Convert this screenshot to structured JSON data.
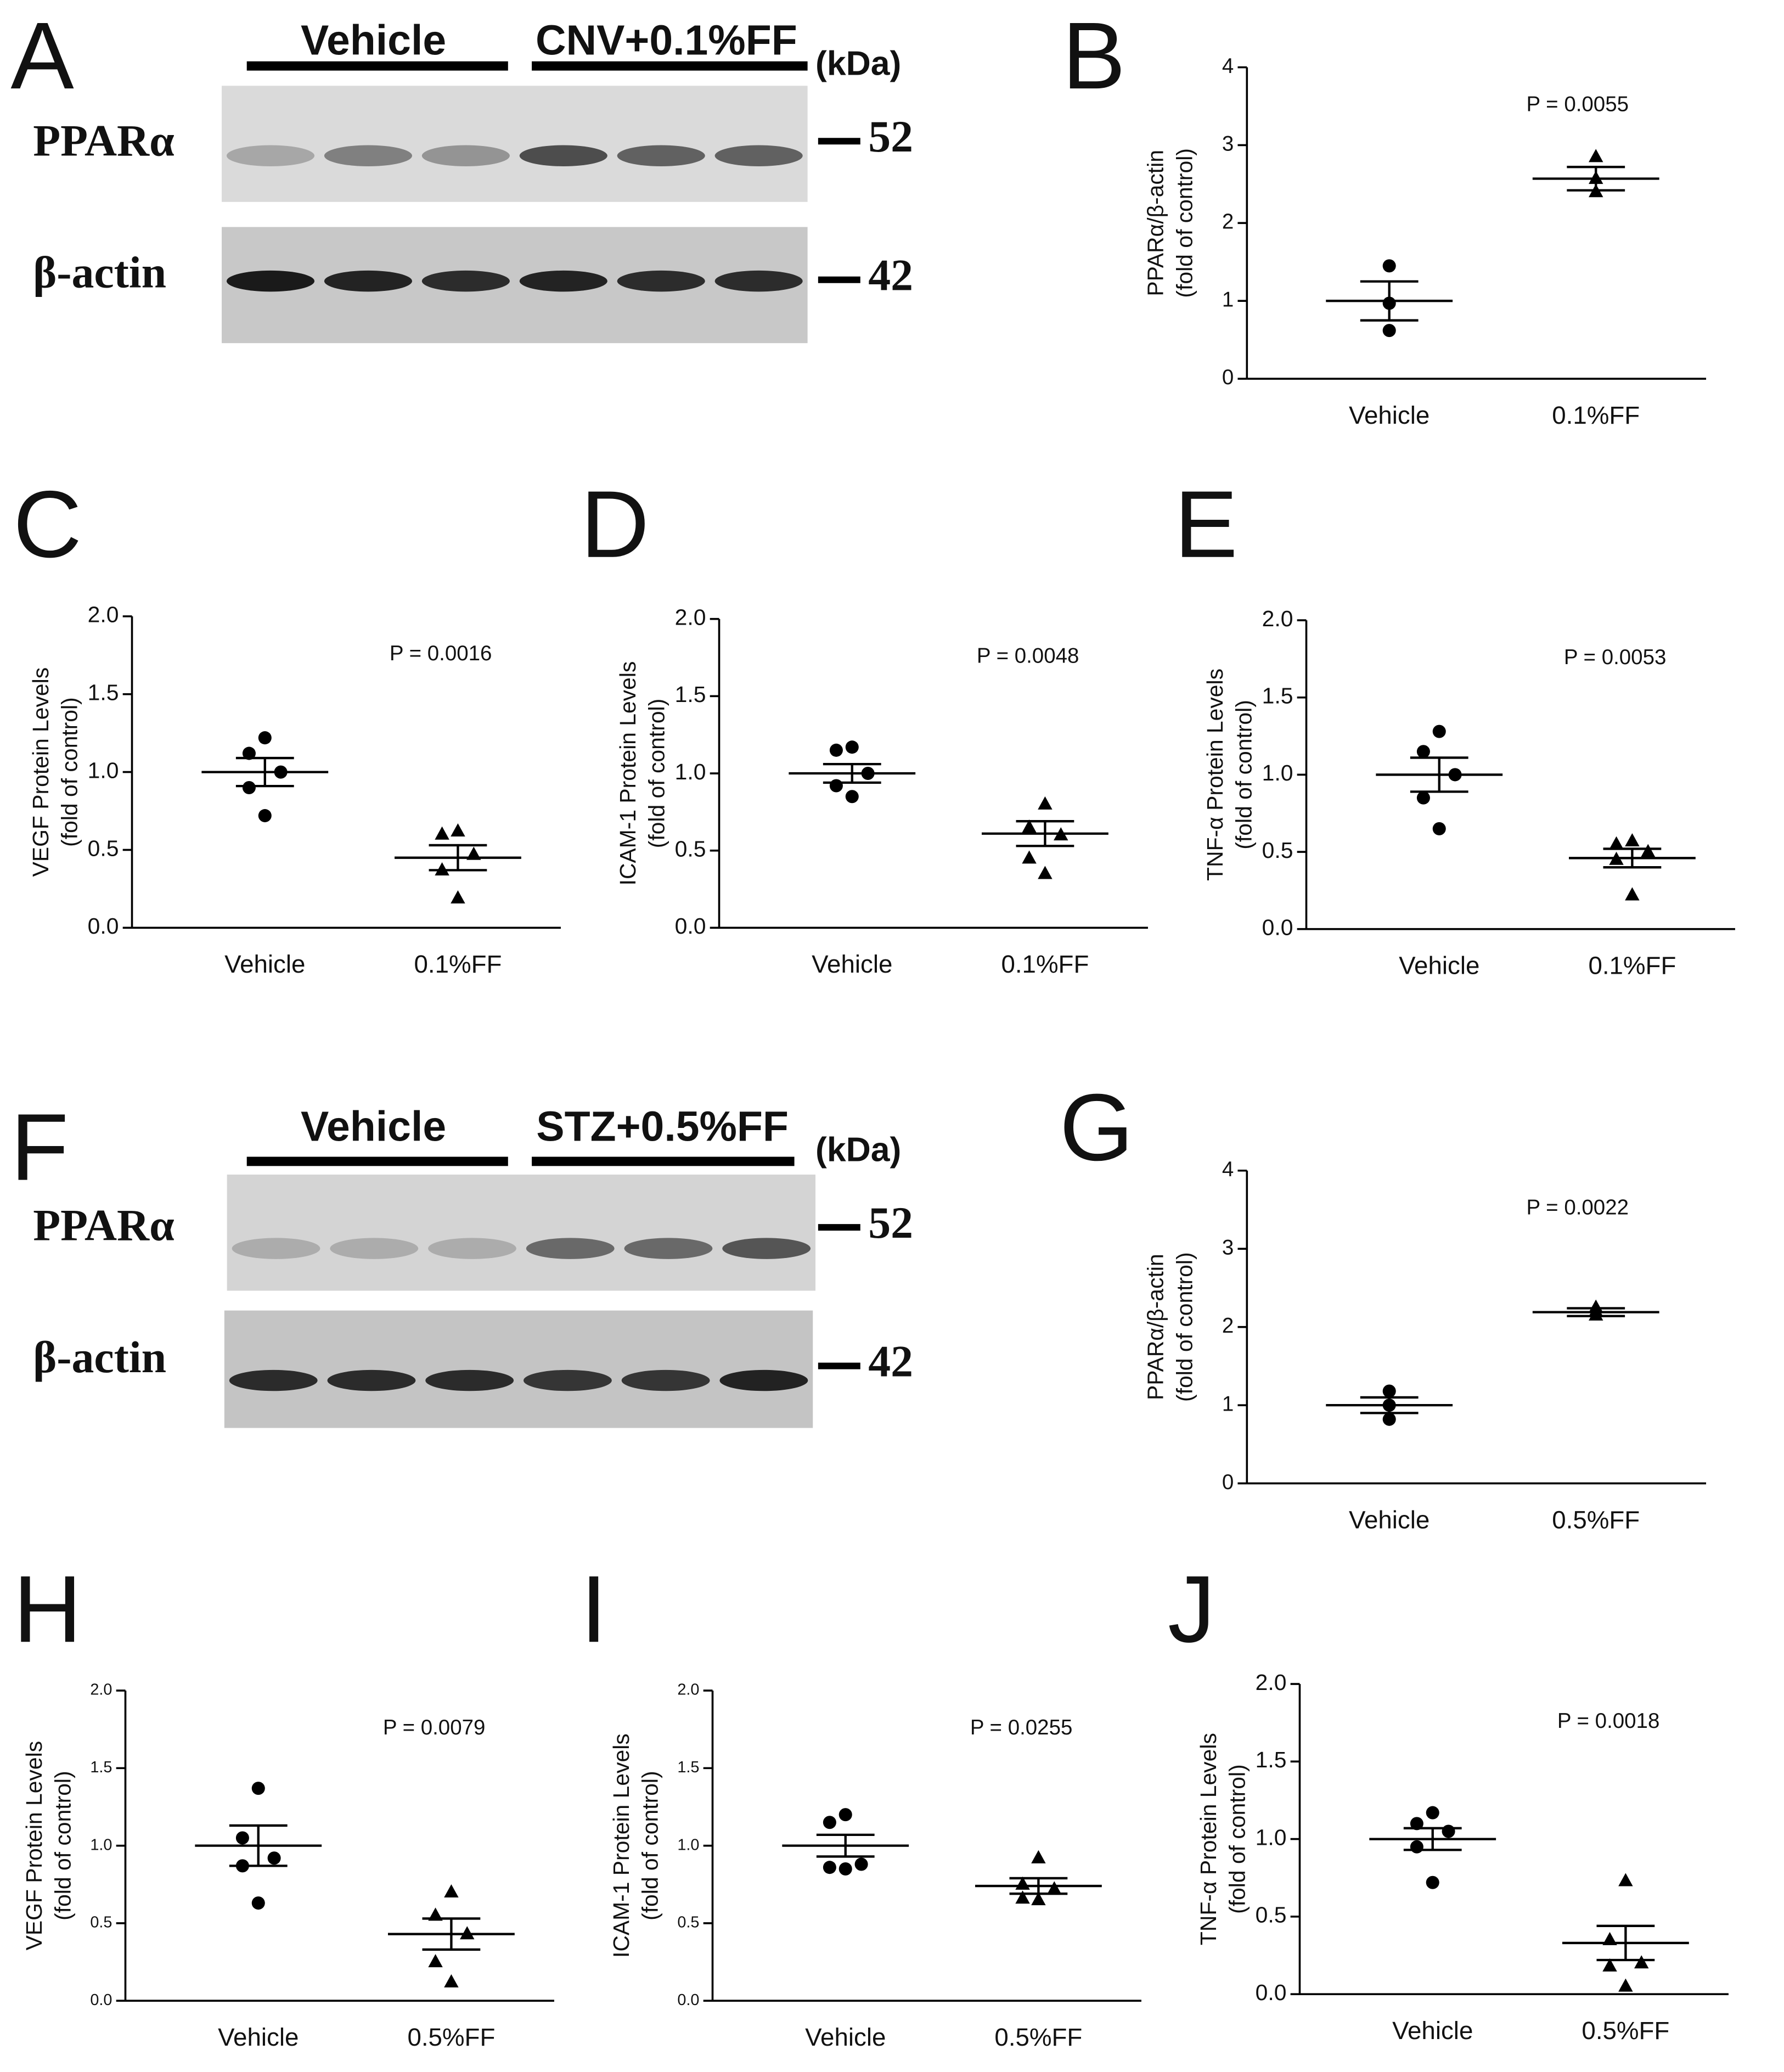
{
  "chart_data": [
    {
      "type": "dot",
      "panel": "B",
      "ylabel": [
        "PPARα/β-actin",
        "(fold of control)"
      ],
      "categories": [
        "Vehicle",
        "0.1%FF"
      ],
      "annotation": "P = 0.0055",
      "markers": [
        "circle",
        "triangle"
      ],
      "ylim": [
        0,
        4
      ],
      "yticks": [
        0,
        1,
        2,
        3,
        4
      ],
      "groups": [
        {
          "points": [
            1.45,
            0.97,
            0.62
          ],
          "mean": 1.0,
          "sem": 0.25
        },
        {
          "points": [
            2.85,
            2.57,
            2.4
          ],
          "mean": 2.57,
          "sem": 0.15
        }
      ]
    },
    {
      "type": "dot",
      "panel": "C",
      "ylabel": [
        "VEGF Protein Levels",
        "(fold of control)"
      ],
      "categories": [
        "Vehicle",
        "0.1%FF"
      ],
      "annotation": "P = 0.0016",
      "markers": [
        "circle",
        "triangle"
      ],
      "ylim": [
        0,
        2
      ],
      "yticks": [
        {
          "value": 0,
          "label": "0.0"
        },
        {
          "value": 0.5,
          "label": "0.5"
        },
        {
          "value": 1,
          "label": "1.0"
        },
        {
          "value": 1.5,
          "label": "1.5"
        },
        {
          "value": 2,
          "label": "2.0"
        }
      ],
      "groups": [
        {
          "points": [
            1.22,
            1.12,
            1.0,
            0.9,
            0.72
          ],
          "mean": 1.0,
          "sem": 0.09
        },
        {
          "points": [
            0.62,
            0.6,
            0.47,
            0.37,
            0.19
          ],
          "mean": 0.45,
          "sem": 0.08
        }
      ]
    },
    {
      "type": "dot",
      "panel": "D",
      "ylabel": [
        "ICAM-1 Protein Levels",
        "(fold of control)"
      ],
      "categories": [
        "Vehicle",
        "0.1%FF"
      ],
      "annotation": "P = 0.0048",
      "markers": [
        "circle",
        "triangle"
      ],
      "ylim": [
        0,
        2
      ],
      "yticks": [
        {
          "value": 0,
          "label": "0.0"
        },
        {
          "value": 0.5,
          "label": "0.5"
        },
        {
          "value": 1,
          "label": "1.0"
        },
        {
          "value": 1.5,
          "label": "1.5"
        },
        {
          "value": 2,
          "label": "2.0"
        }
      ],
      "groups": [
        {
          "points": [
            1.17,
            1.15,
            1.0,
            0.92,
            0.85
          ],
          "mean": 1.0,
          "sem": 0.06
        },
        {
          "points": [
            0.8,
            0.65,
            0.6,
            0.45,
            0.35
          ],
          "mean": 0.61,
          "sem": 0.08
        }
      ]
    },
    {
      "type": "dot",
      "panel": "E",
      "ylabel": [
        "TNF-α Protein Levels",
        "(fold of control)"
      ],
      "categories": [
        "Vehicle",
        "0.1%FF"
      ],
      "annotation": "P = 0.0053",
      "markers": [
        "circle",
        "triangle"
      ],
      "ylim": [
        0,
        2
      ],
      "yticks": [
        {
          "value": 0,
          "label": "0.0"
        },
        {
          "value": 0.5,
          "label": "0.5"
        },
        {
          "value": 1,
          "label": "1.0"
        },
        {
          "value": 1.5,
          "label": "1.5"
        },
        {
          "value": 2,
          "label": "2.0"
        }
      ],
      "groups": [
        {
          "points": [
            1.28,
            1.15,
            1.0,
            0.85,
            0.65
          ],
          "mean": 1.0,
          "sem": 0.11
        },
        {
          "points": [
            0.57,
            0.55,
            0.5,
            0.45,
            0.22
          ],
          "mean": 0.46,
          "sem": 0.06
        }
      ]
    },
    {
      "type": "dot",
      "panel": "G",
      "ylabel": [
        "PPARα/β-actin",
        "(fold of control)"
      ],
      "categories": [
        "Vehicle",
        "0.5%FF"
      ],
      "annotation": "P = 0.0022",
      "markers": [
        "circle",
        "triangle"
      ],
      "ylim": [
        0,
        4
      ],
      "yticks": [
        0,
        1,
        2,
        3,
        4
      ],
      "groups": [
        {
          "points": [
            1.18,
            1.0,
            0.82
          ],
          "mean": 1.0,
          "sem": 0.1
        },
        {
          "points": [
            2.25,
            2.2,
            2.15
          ],
          "mean": 2.19,
          "sem": 0.05
        }
      ]
    },
    {
      "type": "dot",
      "panel": "H",
      "ylabel": [
        "VEGF Protein Levels",
        "(fold of control)"
      ],
      "categories": [
        "Vehicle",
        "0.5%FF"
      ],
      "annotation": "P = 0.0079",
      "markers": [
        "circle",
        "triangle"
      ],
      "ylim": [
        0,
        2
      ],
      "yticks": [
        {
          "value": 0,
          "label": "0.0"
        },
        {
          "value": 0.5,
          "label": "0.5"
        },
        {
          "value": 1,
          "label": "1.0"
        },
        {
          "value": 1.5,
          "label": "1.5"
        },
        {
          "value": 2,
          "label": "2.0"
        }
      ],
      "groups": [
        {
          "points": [
            1.37,
            1.05,
            0.92,
            0.87,
            0.63
          ],
          "mean": 1.0,
          "sem": 0.13
        },
        {
          "points": [
            0.7,
            0.55,
            0.43,
            0.25,
            0.12
          ],
          "mean": 0.43,
          "sem": 0.1
        }
      ]
    },
    {
      "type": "dot",
      "panel": "I",
      "ylabel": [
        "ICAM-1 Protein Levels",
        "(fold of control)"
      ],
      "categories": [
        "Vehicle",
        "0.5%FF"
      ],
      "annotation": "P = 0.0255",
      "markers": [
        "circle",
        "triangle"
      ],
      "ylim": [
        0,
        2
      ],
      "yticks": [
        {
          "value": 0,
          "label": "0.0"
        },
        {
          "value": 0.5,
          "label": "0.5"
        },
        {
          "value": 1,
          "label": "1.0"
        },
        {
          "value": 1.5,
          "label": "1.5"
        },
        {
          "value": 2,
          "label": "2.0"
        }
      ],
      "groups": [
        {
          "points": [
            1.2,
            1.15,
            0.88,
            0.86,
            0.85
          ],
          "mean": 1.0,
          "sem": 0.07
        },
        {
          "points": [
            0.92,
            0.75,
            0.72,
            0.66,
            0.65
          ],
          "mean": 0.74,
          "sem": 0.05
        }
      ]
    },
    {
      "type": "dot",
      "panel": "J",
      "ylabel": [
        "TNF-α Protein Levels",
        "(fold of control)"
      ],
      "categories": [
        "Vehicle",
        "0.5%FF"
      ],
      "annotation": "P = 0.0018",
      "markers": [
        "circle",
        "triangle"
      ],
      "ylim": [
        0,
        2
      ],
      "yticks": [
        {
          "value": 0,
          "label": "0.0"
        },
        {
          "value": 0.5,
          "label": "0.5"
        },
        {
          "value": 1,
          "label": "1.0"
        },
        {
          "value": 1.5,
          "label": "1.5"
        },
        {
          "value": 2,
          "label": "2.0"
        }
      ],
      "groups": [
        {
          "points": [
            1.17,
            1.1,
            1.05,
            0.95,
            0.72
          ],
          "mean": 1.0,
          "sem": 0.07
        },
        {
          "points": [
            0.73,
            0.35,
            0.2,
            0.18,
            0.05
          ],
          "mean": 0.33,
          "sem": 0.11
        }
      ]
    }
  ],
  "blots": [
    {
      "panel": "A",
      "groups": [
        "Vehicle",
        "CNV+0.1%FF"
      ],
      "unit": "(kDa)",
      "rows": [
        {
          "label": "PPARα",
          "kda": 52
        },
        {
          "label": "β-actin",
          "kda": 42
        }
      ]
    },
    {
      "panel": "F",
      "groups": [
        "Vehicle",
        "STZ+0.5%FF"
      ],
      "unit": "(kDa)",
      "rows": [
        {
          "label": "PPARα",
          "kda": 52
        },
        {
          "label": "β-actin",
          "kda": 42
        }
      ]
    }
  ]
}
